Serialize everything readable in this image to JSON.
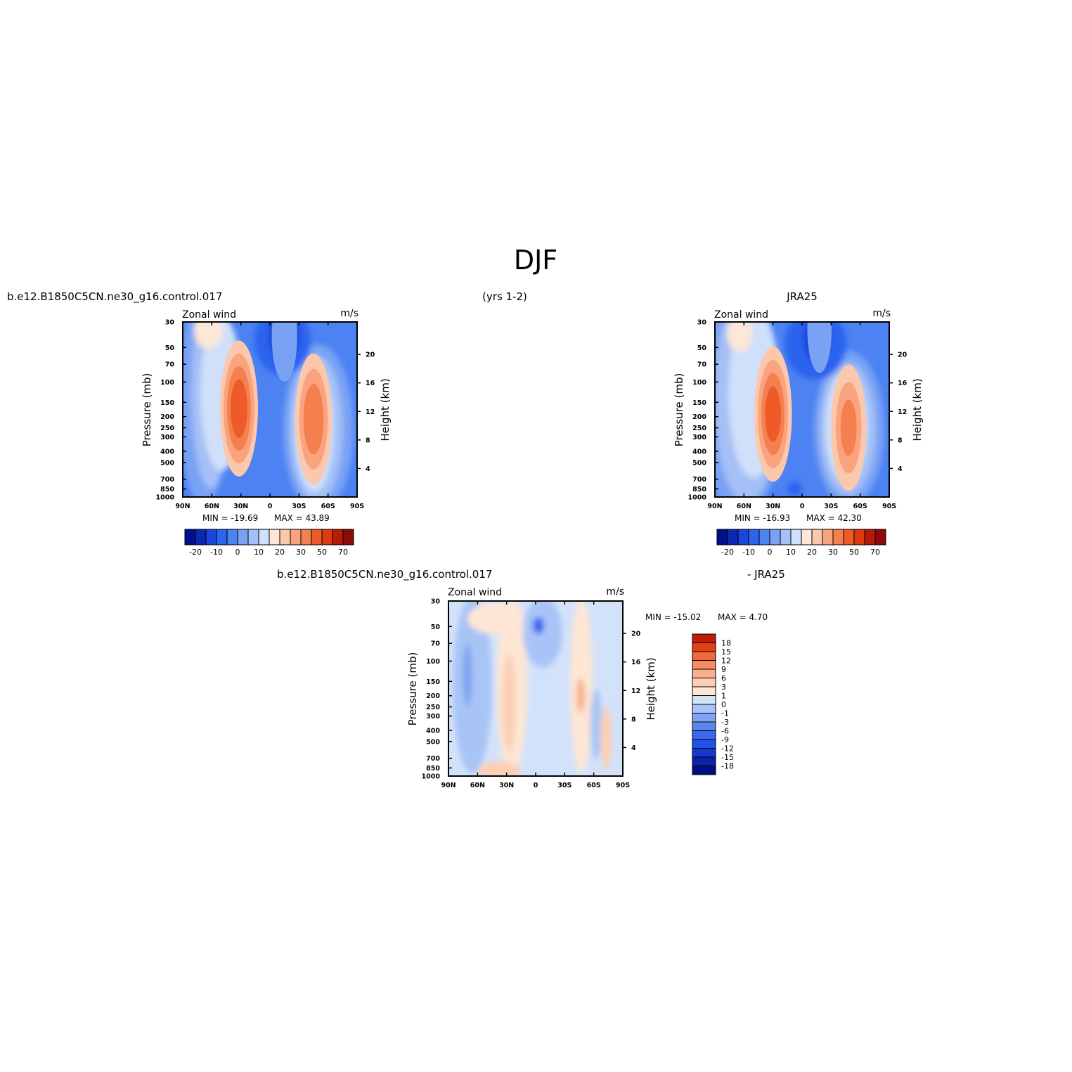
{
  "figure": {
    "title": "DJF",
    "period_label": "(yrs 1-2)"
  },
  "chart_data": [
    {
      "type": "heatmap",
      "panel": "model",
      "case_label": "b.e12.B1850C5CN.ne30_g16.control.017",
      "variable": "Zonal wind",
      "units": "m/s",
      "ylabel": "Pressure (mb)",
      "y2label": "Height (km)",
      "min_label": "MIN = -19.69",
      "max_label": "MAX =   43.89",
      "x_ticks": [
        "90N",
        "60N",
        "30N",
        "0",
        "30S",
        "60S",
        "90S"
      ],
      "y_ticks": [
        30,
        50,
        70,
        100,
        150,
        200,
        250,
        300,
        400,
        500,
        700,
        850,
        1000
      ],
      "y2_ticks": [
        20,
        16,
        12,
        8,
        4
      ],
      "colorbar_labels": [
        "-20",
        "-10",
        "0",
        "10",
        "20",
        "30",
        "50",
        "70"
      ],
      "jets": [
        {
          "lat": 32,
          "pressure": 170,
          "value": 43.89
        },
        {
          "lat": -45,
          "pressure": 210,
          "value": 36
        },
        {
          "lat": -15,
          "pressure": 40,
          "value": -19.69
        }
      ]
    },
    {
      "type": "heatmap",
      "panel": "observations",
      "case_label": "JRA25",
      "variable": "Zonal wind",
      "units": "m/s",
      "ylabel": "Pressure (mb)",
      "y2label": "Height (km)",
      "min_label": "MIN = -16.93",
      "max_label": "MAX =   42.30",
      "x_ticks": [
        "90N",
        "60N",
        "30N",
        "0",
        "30S",
        "60S",
        "90S"
      ],
      "y_ticks": [
        30,
        50,
        70,
        100,
        150,
        200,
        250,
        300,
        400,
        500,
        700,
        850,
        1000
      ],
      "y2_ticks": [
        20,
        16,
        12,
        8,
        4
      ],
      "colorbar_labels": [
        "-20",
        "-10",
        "0",
        "10",
        "20",
        "30",
        "50",
        "70"
      ],
      "jets": [
        {
          "lat": 30,
          "pressure": 190,
          "value": 42.3
        },
        {
          "lat": -48,
          "pressure": 250,
          "value": 30
        },
        {
          "lat": -18,
          "pressure": 35,
          "value": -16.93
        }
      ]
    },
    {
      "type": "heatmap",
      "panel": "difference",
      "case_label": "b.e12.B1850C5CN.ne30_g16.control.017",
      "case_label_right": "- JRA25",
      "variable": "Zonal wind",
      "units": "m/s",
      "ylabel": "Pressure (mb)",
      "y2label": "Height (km)",
      "min_label": "MIN = -15.02",
      "max_label": "MAX =    4.70",
      "x_ticks": [
        "90N",
        "60N",
        "30N",
        "0",
        "30S",
        "60S",
        "90S"
      ],
      "y_ticks": [
        30,
        50,
        70,
        100,
        150,
        200,
        250,
        300,
        400,
        500,
        700,
        850,
        1000
      ],
      "y2_ticks": [
        20,
        16,
        12,
        8,
        4
      ],
      "colorbar_labels": [
        "18",
        "15",
        "12",
        "9",
        "6",
        "3",
        "1",
        "0",
        "-1",
        "-3",
        "-6",
        "-9",
        "-12",
        "-15",
        "-18"
      ]
    }
  ],
  "palette": {
    "blue_red_16": [
      "#00108c",
      "#0a28b4",
      "#1a46dc",
      "#2c64ee",
      "#4c82f2",
      "#79a2f4",
      "#a4c0f6",
      "#d0e0fa",
      "#fde7d7",
      "#fcc8ad",
      "#f9a47f",
      "#f5804f",
      "#ee5a28",
      "#de3a10",
      "#b81a08",
      "#8c0a0a"
    ],
    "diff_16": [
      "#000f80",
      "#0a24a8",
      "#1438d0",
      "#2450ea",
      "#3c68f0",
      "#5a86f0",
      "#80a4f0",
      "#a8c4f6",
      "#d2e2fa",
      "#fde6d4",
      "#fccfb4",
      "#fab08c",
      "#f78c62",
      "#f2683a",
      "#e54018",
      "#c01c08"
    ]
  }
}
